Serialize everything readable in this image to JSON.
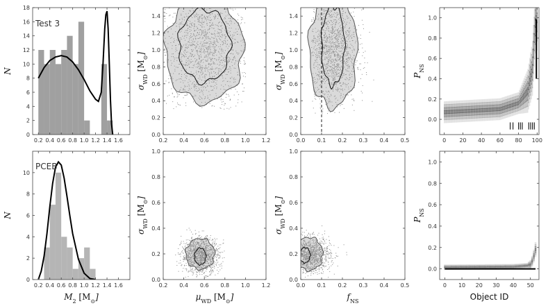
{
  "chart_data": [
    {
      "id": "hist_test3",
      "type": "bar",
      "annotation": "Test 3",
      "xlim": [
        0.1,
        1.8
      ],
      "ylim": [
        0,
        18
      ],
      "xticks": [
        "0.2",
        "0.4",
        "0.6",
        "0.8",
        "1.0",
        "1.2",
        "1.4",
        "1.6"
      ],
      "yticks": [
        "0",
        "2",
        "4",
        "6",
        "8",
        "10",
        "12",
        "14",
        "16",
        "18"
      ],
      "ylabel": "N",
      "xlabel": "",
      "bins": [
        {
          "x0": 0.2,
          "x1": 0.3,
          "v": 12
        },
        {
          "x0": 0.3,
          "x1": 0.4,
          "v": 10
        },
        {
          "x0": 0.4,
          "x1": 0.5,
          "v": 12
        },
        {
          "x0": 0.5,
          "x1": 0.6,
          "v": 10
        },
        {
          "x0": 0.6,
          "x1": 0.7,
          "v": 12
        },
        {
          "x0": 0.7,
          "x1": 0.8,
          "v": 14
        },
        {
          "x0": 0.8,
          "x1": 0.9,
          "v": 10
        },
        {
          "x0": 0.9,
          "x1": 1.0,
          "v": 16
        },
        {
          "x0": 1.0,
          "x1": 1.1,
          "v": 2
        },
        {
          "x0": 1.3,
          "x1": 1.4,
          "v": 10
        },
        {
          "x0": 1.4,
          "x1": 1.5,
          "v": 2
        }
      ],
      "fit_curve": {
        "x": [
          0.2,
          0.3,
          0.4,
          0.5,
          0.6,
          0.7,
          0.8,
          0.9,
          1.0,
          1.1,
          1.2,
          1.25,
          1.3,
          1.33,
          1.36,
          1.38,
          1.4,
          1.42,
          1.44,
          1.46,
          1.48,
          1.5
        ],
        "y": [
          8,
          9.5,
          10.5,
          11,
          11.2,
          11,
          10.3,
          9.2,
          7.8,
          6.2,
          5,
          4.7,
          6,
          10,
          15,
          17,
          17.5,
          15,
          10,
          5,
          1.5,
          0
        ]
      }
    },
    {
      "id": "scatter_mu_sigma_test3",
      "type": "scatter",
      "xlim": [
        0.2,
        1.2
      ],
      "ylim": [
        0,
        1.5
      ],
      "xticks": [
        "0.2",
        "0.4",
        "0.6",
        "0.8",
        "1.0",
        "1.2"
      ],
      "yticks": [
        "0.0",
        "0.2",
        "0.4",
        "0.6",
        "0.8",
        "1.0",
        "1.2",
        "1.4"
      ],
      "ylabel": "σ_WD [M_⊙]",
      "xlabel": "",
      "cloud": {
        "cx": 0.6,
        "cy": 1.0,
        "sx": 0.22,
        "sy": 0.38,
        "n": 1800,
        "ymin": 0.3,
        "ymax": 1.5,
        "xmin": 0.2,
        "xmax": 1.0
      },
      "contours": [
        {
          "cx": 0.6,
          "cy": 1.0,
          "rx": 0.38,
          "ry": 0.62
        },
        {
          "cx": 0.6,
          "cy": 1.05,
          "rx": 0.25,
          "ry": 0.43
        }
      ]
    },
    {
      "id": "scatter_f_sigma_test3",
      "type": "scatter",
      "xlim": [
        0.0,
        0.5
      ],
      "ylim": [
        0,
        1.5
      ],
      "xticks": [
        "0.0",
        "0.1",
        "0.2",
        "0.3",
        "0.4",
        "0.5"
      ],
      "yticks": [
        "0.0",
        "0.2",
        "0.4",
        "0.6",
        "0.8",
        "1.0",
        "1.2",
        "1.4"
      ],
      "ylabel": "σ_WD [M_⊙]",
      "xlabel": "",
      "cloud": {
        "cx": 0.15,
        "cy": 1.0,
        "sx": 0.06,
        "sy": 0.35,
        "n": 1600,
        "ymin": 0.25,
        "ymax": 1.5,
        "xmin": 0.05,
        "xmax": 0.4
      },
      "contours": [
        {
          "cx": 0.155,
          "cy": 1.0,
          "rx": 0.115,
          "ry": 0.68
        },
        {
          "cx": 0.155,
          "cy": 1.05,
          "rx": 0.055,
          "ry": 0.47
        }
      ],
      "vline": 0.1
    },
    {
      "id": "pns_test3",
      "type": "heatmap",
      "xlim": [
        -5,
        102
      ],
      "ylim": [
        -0.15,
        1.1
      ],
      "xticks": [
        "0",
        "20",
        "40",
        "60",
        "80",
        "100"
      ],
      "yticks": [
        "0.0",
        "0.2",
        "0.4",
        "0.6",
        "0.8",
        "1.0"
      ],
      "ylabel": "P_NS",
      "xlabel": "",
      "trend": {
        "x": [
          0,
          60,
          80,
          90,
          95,
          98,
          100
        ],
        "y": [
          0.07,
          0.1,
          0.16,
          0.28,
          0.5,
          0.95,
          1.0
        ]
      },
      "rug_x": [
        71,
        74,
        80,
        82,
        84,
        91,
        93,
        95,
        97
      ]
    },
    {
      "id": "hist_pceb",
      "type": "bar",
      "annotation": "PCEB",
      "xlim": [
        0.1,
        1.8
      ],
      "ylim": [
        0,
        12
      ],
      "xticks": [
        "0.2",
        "0.4",
        "0.6",
        "0.8",
        "1.0",
        "1.2",
        "1.4",
        "1.6"
      ],
      "yticks": [
        "0",
        "2",
        "4",
        "6",
        "8",
        "10"
      ],
      "ylabel": "N",
      "xlabel": "M_2 [M_⊙]",
      "bins": [
        {
          "x0": 0.3,
          "x1": 0.4,
          "v": 3
        },
        {
          "x0": 0.4,
          "x1": 0.5,
          "v": 7
        },
        {
          "x0": 0.5,
          "x1": 0.6,
          "v": 10
        },
        {
          "x0": 0.6,
          "x1": 0.7,
          "v": 4
        },
        {
          "x0": 0.7,
          "x1": 0.8,
          "v": 3
        },
        {
          "x0": 0.8,
          "x1": 0.9,
          "v": 1
        },
        {
          "x0": 0.9,
          "x1": 1.0,
          "v": 2
        },
        {
          "x0": 1.0,
          "x1": 1.1,
          "v": 3
        },
        {
          "x0": 1.1,
          "x1": 1.2,
          "v": 1
        }
      ],
      "fit_curve": {
        "x": [
          0.2,
          0.25,
          0.3,
          0.35,
          0.4,
          0.45,
          0.5,
          0.55,
          0.6,
          0.65,
          0.7,
          0.75,
          0.8,
          0.9,
          1.0,
          1.1,
          1.2
        ],
        "y": [
          0,
          0.8,
          2.2,
          4.3,
          6.8,
          9,
          10.5,
          11,
          10.7,
          9.5,
          7.8,
          6,
          4.3,
          1.9,
          0.6,
          0.1,
          0
        ]
      }
    },
    {
      "id": "scatter_mu_sigma_pceb",
      "type": "scatter",
      "xlim": [
        0.2,
        1.2
      ],
      "ylim": [
        0,
        1.0
      ],
      "xticks": [
        "0.2",
        "0.4",
        "0.6",
        "0.8",
        "1.0",
        "1.2"
      ],
      "yticks": [
        "0.0",
        "0.2",
        "0.4",
        "0.6",
        "0.8",
        "1.0"
      ],
      "ylabel": "σ_WD [M_⊙]",
      "xlabel": "μ_WD [M_⊙]",
      "cloud": {
        "cx": 0.56,
        "cy": 0.19,
        "sx": 0.09,
        "sy": 0.07,
        "n": 1200,
        "ymin": 0.02,
        "ymax": 0.6,
        "xmin": 0.3,
        "xmax": 0.85
      },
      "contours": [
        {
          "cx": 0.56,
          "cy": 0.2,
          "rx": 0.14,
          "ry": 0.12
        },
        {
          "cx": 0.56,
          "cy": 0.18,
          "rx": 0.055,
          "ry": 0.065
        }
      ]
    },
    {
      "id": "scatter_f_sigma_pceb",
      "type": "scatter",
      "xlim": [
        0.0,
        0.5
      ],
      "ylim": [
        0,
        1.0
      ],
      "xticks": [
        "0.0",
        "0.1",
        "0.2",
        "0.3",
        "0.4",
        "0.5"
      ],
      "yticks": [
        "0.0",
        "0.2",
        "0.4",
        "0.6",
        "0.8",
        "1.0"
      ],
      "ylabel": "σ_WD [M_⊙]",
      "xlabel": "f_NS",
      "cloud": {
        "cx": 0.04,
        "cy": 0.19,
        "sx": 0.05,
        "sy": 0.07,
        "n": 1200,
        "ymin": 0.02,
        "ymax": 0.55,
        "xmin": 0.0,
        "xmax": 0.27
      },
      "contours": [
        {
          "cx": 0.04,
          "cy": 0.2,
          "rx": 0.065,
          "ry": 0.13
        },
        {
          "cx": 0.02,
          "cy": 0.19,
          "rx": 0.025,
          "ry": 0.06
        }
      ]
    },
    {
      "id": "pns_pceb",
      "type": "heatmap",
      "xlim": [
        -3,
        55
      ],
      "ylim": [
        -0.1,
        1.1
      ],
      "xticks": [
        "0",
        "10",
        "20",
        "30",
        "40",
        "50"
      ],
      "yticks": [
        "0.0",
        "0.2",
        "0.4",
        "0.6",
        "0.8",
        "1.0"
      ],
      "ylabel": "P_NS",
      "xlabel": "Object ID",
      "trend": {
        "x": [
          0,
          40,
          48,
          50,
          51,
          52,
          53
        ],
        "y": [
          0.015,
          0.02,
          0.03,
          0.04,
          0.07,
          0.12,
          0.18
        ]
      },
      "rug_x": []
    }
  ]
}
